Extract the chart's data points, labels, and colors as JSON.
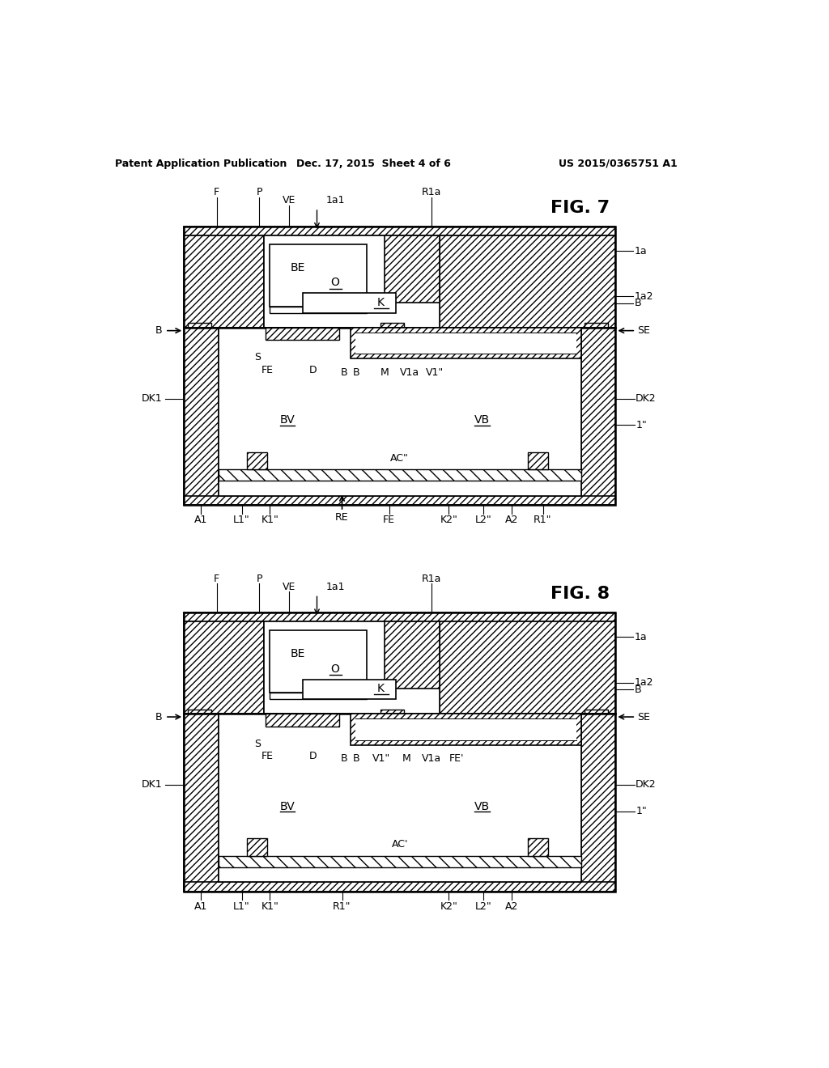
{
  "header_left": "Patent Application Publication",
  "header_center": "Dec. 17, 2015  Sheet 4 of 6",
  "header_right": "US 2015/0365751 A1",
  "fig7_title": "FIG. 7",
  "fig8_title": "FIG. 8",
  "bg_color": "#ffffff"
}
